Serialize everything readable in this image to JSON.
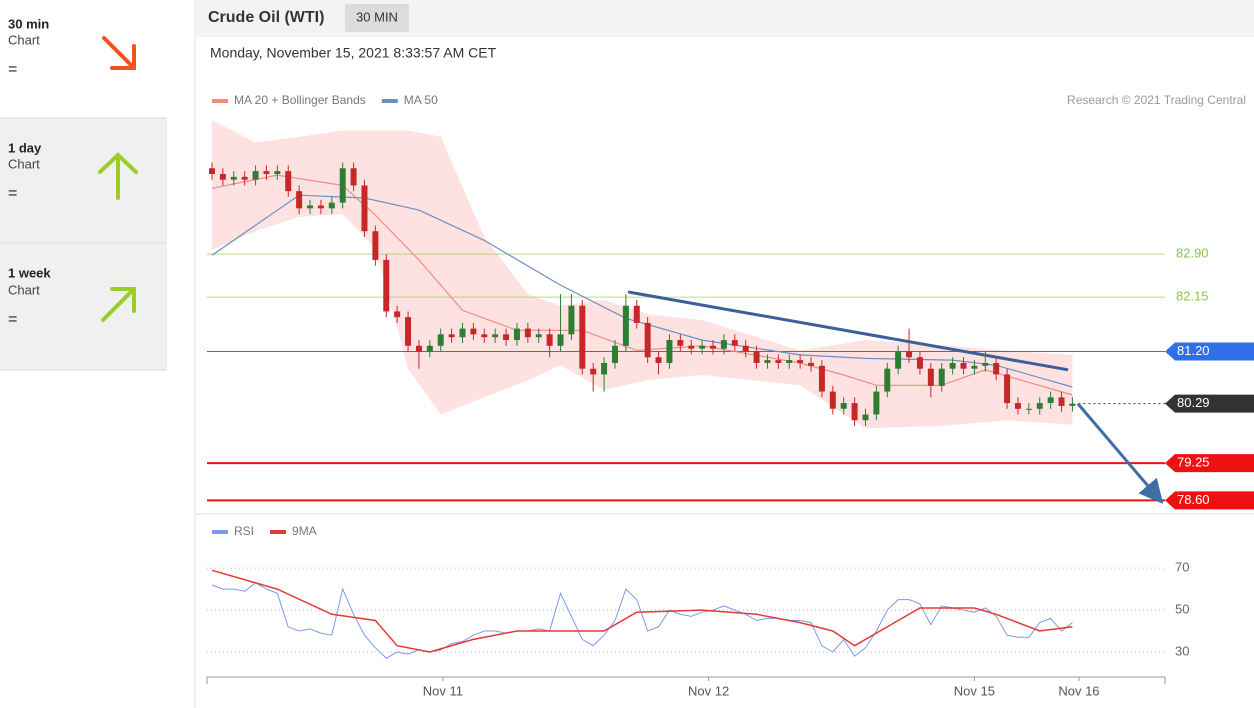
{
  "sidebar": [
    {
      "period": "30 min",
      "label": "Chart",
      "status": "="
    },
    {
      "period": "1 day",
      "label": "Chart",
      "status": "="
    },
    {
      "period": "1 week",
      "label": "Chart",
      "status": "="
    }
  ],
  "header": {
    "title": "Crude Oil (WTI)",
    "interval": "30 MIN",
    "timestamp": "Monday, November 15, 2021 8:33:57 AM CET",
    "credit": "Research © 2021 Trading Central"
  },
  "chart_data": [
    {
      "type": "candlestick",
      "up_color": "#2e7d32",
      "down_color": "#c62828",
      "xlim": [
        0,
        87.5
      ],
      "ylim": [
        78.38,
        85.33
      ],
      "open": [
        84.4,
        84.3,
        84.2,
        84.25,
        84.2,
        84.35,
        84.3,
        84.35,
        84.0,
        83.7,
        83.75,
        83.7,
        83.8,
        84.4,
        84.1,
        83.3,
        82.8,
        81.9,
        81.8,
        81.3,
        81.2,
        81.3,
        81.5,
        81.45,
        81.6,
        81.5,
        81.45,
        81.5,
        81.4,
        81.6,
        81.45,
        81.5,
        81.3,
        81.5,
        82.0,
        80.9,
        80.8,
        81.0,
        81.3,
        82.0,
        81.7,
        81.1,
        81.0,
        81.4,
        81.3,
        81.25,
        81.3,
        81.25,
        81.4,
        81.3,
        81.2,
        81.0,
        81.05,
        81.0,
        81.05,
        81.0,
        80.95,
        80.5,
        80.2,
        80.3,
        80.0,
        80.1,
        80.5,
        80.9,
        81.2,
        81.1,
        80.9,
        80.6,
        80.9,
        81.0,
        80.9,
        80.95,
        81.0,
        80.8,
        80.3,
        80.2,
        80.2,
        80.3,
        80.4,
        80.25
      ],
      "high": [
        84.5,
        84.4,
        84.35,
        84.35,
        84.45,
        84.45,
        84.45,
        84.45,
        84.1,
        83.85,
        83.85,
        83.9,
        84.5,
        84.5,
        84.2,
        83.4,
        82.9,
        82.0,
        81.9,
        81.4,
        81.4,
        81.6,
        81.6,
        81.7,
        81.7,
        81.6,
        81.6,
        81.6,
        81.7,
        81.7,
        81.6,
        81.6,
        82.2,
        82.2,
        82.1,
        81.0,
        81.1,
        81.4,
        82.2,
        82.1,
        81.8,
        81.2,
        81.5,
        81.5,
        81.4,
        81.4,
        81.4,
        81.5,
        81.5,
        81.4,
        81.3,
        81.15,
        81.15,
        81.15,
        81.15,
        81.1,
        81.05,
        80.6,
        80.4,
        80.4,
        80.2,
        80.6,
        81.0,
        81.3,
        81.6,
        81.2,
        81.0,
        81.0,
        81.1,
        81.1,
        81.05,
        81.2,
        81.1,
        80.9,
        80.4,
        80.3,
        80.4,
        80.5,
        80.5,
        80.4
      ],
      "low": [
        84.2,
        84.1,
        84.1,
        84.1,
        84.1,
        84.2,
        84.2,
        83.9,
        83.6,
        83.6,
        83.6,
        83.6,
        83.7,
        84.0,
        83.2,
        82.7,
        81.8,
        81.7,
        81.2,
        80.9,
        81.1,
        81.2,
        81.35,
        81.35,
        81.4,
        81.35,
        81.35,
        81.3,
        81.3,
        81.35,
        81.35,
        81.1,
        81.2,
        81.4,
        80.8,
        80.5,
        80.5,
        80.9,
        81.2,
        81.6,
        81.0,
        80.8,
        80.9,
        81.2,
        81.15,
        81.15,
        81.15,
        81.15,
        81.2,
        81.1,
        80.9,
        80.9,
        80.9,
        80.9,
        80.9,
        80.85,
        80.4,
        80.1,
        80.1,
        79.9,
        79.9,
        80.0,
        80.4,
        80.8,
        81.0,
        80.8,
        80.4,
        80.5,
        80.8,
        80.8,
        80.8,
        80.85,
        80.7,
        80.2,
        80.1,
        80.1,
        80.1,
        80.2,
        80.15,
        80.15
      ],
      "close": [
        84.3,
        84.2,
        84.25,
        84.2,
        84.35,
        84.3,
        84.35,
        84.0,
        83.7,
        83.75,
        83.7,
        83.8,
        84.4,
        84.1,
        83.3,
        82.8,
        81.9,
        81.8,
        81.3,
        81.2,
        81.3,
        81.5,
        81.45,
        81.6,
        81.5,
        81.45,
        81.5,
        81.4,
        81.6,
        81.45,
        81.5,
        81.3,
        81.5,
        82.0,
        80.9,
        80.8,
        81.0,
        81.3,
        82.0,
        81.7,
        81.1,
        81.0,
        81.4,
        81.3,
        81.25,
        81.3,
        81.25,
        81.4,
        81.3,
        81.2,
        81.0,
        81.05,
        81.0,
        81.05,
        81.0,
        80.95,
        80.5,
        80.2,
        80.3,
        80.0,
        80.1,
        80.5,
        80.9,
        81.2,
        81.1,
        80.9,
        80.6,
        80.9,
        81.0,
        80.9,
        80.95,
        81.0,
        80.8,
        80.3,
        80.2,
        80.2,
        80.3,
        80.4,
        80.25,
        80.29
      ],
      "series": [
        {
          "name": "MA 20 + Bollinger Bands",
          "color": "#f28b82",
          "x": [
            0,
            6,
            12,
            15,
            19,
            23,
            28,
            34,
            39,
            45,
            54,
            58,
            61,
            67,
            71,
            79
          ],
          "values": [
            84.05,
            84.28,
            84.1,
            83.58,
            82.8,
            81.92,
            81.57,
            81.57,
            81.22,
            81.3,
            81.0,
            80.79,
            80.61,
            80.61,
            80.88,
            80.44
          ],
          "band": {
            "color": "#fdd5d5",
            "x": [
              0,
              4,
              8,
              12,
              15,
              18,
              21,
              25,
              29,
              32,
              36,
              40,
              45,
              54,
              60,
              67,
              73,
              79
            ],
            "upper": [
              85.24,
              84.85,
              84.95,
              85.06,
              85.06,
              85.06,
              84.95,
              83.2,
              82.2,
              82.0,
              82.1,
              81.85,
              81.75,
              81.22,
              81.4,
              81.31,
              81.22,
              81.14
            ],
            "lower": [
              82.97,
              83.3,
              83.55,
              83.6,
              83.0,
              80.9,
              80.1,
              80.4,
              80.7,
              80.96,
              80.53,
              80.7,
              80.79,
              80.61,
              79.86,
              79.9,
              80.0,
              79.92
            ]
          }
        },
        {
          "name": "MA 50",
          "color": "#6f8fc0",
          "x": [
            0,
            8,
            14,
            19,
            25,
            32,
            38,
            45,
            54,
            60,
            68,
            72,
            79
          ],
          "values": [
            82.88,
            83.93,
            83.88,
            83.67,
            83.14,
            82.36,
            81.78,
            81.4,
            81.14,
            81.08,
            81.05,
            80.96,
            80.58
          ]
        }
      ],
      "levels": [
        {
          "value": 82.9,
          "label": "82.90",
          "color": "#8bc34a",
          "style": "plain",
          "line_width": 1
        },
        {
          "value": 82.15,
          "label": "82.15",
          "color": "#8bc34a",
          "style": "plain",
          "line_width": 1
        },
        {
          "value": 81.2,
          "label": "81.20",
          "color": "#2f6fe8",
          "style": "tag",
          "line_width": 1
        },
        {
          "value": 80.29,
          "label": "80.29",
          "color": "#333333",
          "style": "tag",
          "line_width": 1,
          "dotted": true
        },
        {
          "value": 79.25,
          "label": "79.25",
          "color": "#ee1111",
          "style": "tag",
          "line_width": 2
        },
        {
          "value": 78.6,
          "label": "78.60",
          "color": "#ee1111",
          "style": "tag",
          "line_width": 2
        }
      ],
      "trendline": {
        "color": "#3c5f9a",
        "x": [
          38.2,
          78.6
        ],
        "values": [
          82.24,
          80.88
        ]
      },
      "forecast_arrow": {
        "color": "#3c6ea8",
        "x": [
          79.5,
          86.8
        ],
        "values": [
          80.29,
          78.66
        ]
      }
    },
    {
      "type": "line",
      "xlim": [
        0,
        87.5
      ],
      "ylim": [
        19,
        93
      ],
      "yticks": [
        30,
        50,
        70
      ],
      "grid": true,
      "xticks": [
        {
          "value": 21.2,
          "label": "Nov 11"
        },
        {
          "value": 45.6,
          "label": "Nov 12"
        },
        {
          "value": 70,
          "label": "Nov 15"
        },
        {
          "value": 79.6,
          "label": "Nov 16"
        }
      ],
      "series": [
        {
          "name": "RSI",
          "color": "#7b9be6",
          "values": [
            62,
            60,
            60,
            59,
            63,
            60,
            58,
            42,
            40,
            41,
            39,
            38,
            60,
            48,
            38,
            32,
            27,
            30,
            29,
            31,
            30,
            31,
            34,
            35,
            38,
            40,
            40,
            39,
            40,
            40,
            41,
            40,
            58,
            47,
            36,
            33,
            38,
            45,
            60,
            55,
            40,
            42,
            50,
            48,
            47,
            49,
            50,
            52,
            50,
            48,
            45,
            46,
            46,
            45,
            45,
            44,
            33,
            30,
            36,
            28,
            32,
            40,
            50,
            55,
            55,
            53,
            43,
            52,
            51,
            50,
            49,
            51,
            47,
            38,
            37,
            37,
            44,
            46,
            40,
            44
          ]
        },
        {
          "name": "9MA",
          "color": "#e53935",
          "x": [
            0,
            6,
            11,
            15,
            17,
            20,
            24,
            28,
            32,
            36,
            39,
            45,
            50,
            54,
            57,
            59,
            63,
            65,
            70,
            72,
            76,
            79
          ],
          "values": [
            69,
            60,
            48,
            45,
            33,
            30,
            36,
            40,
            40,
            40,
            49,
            50,
            48,
            44,
            40,
            33,
            45,
            51,
            51,
            48,
            40,
            42
          ]
        }
      ]
    }
  ]
}
